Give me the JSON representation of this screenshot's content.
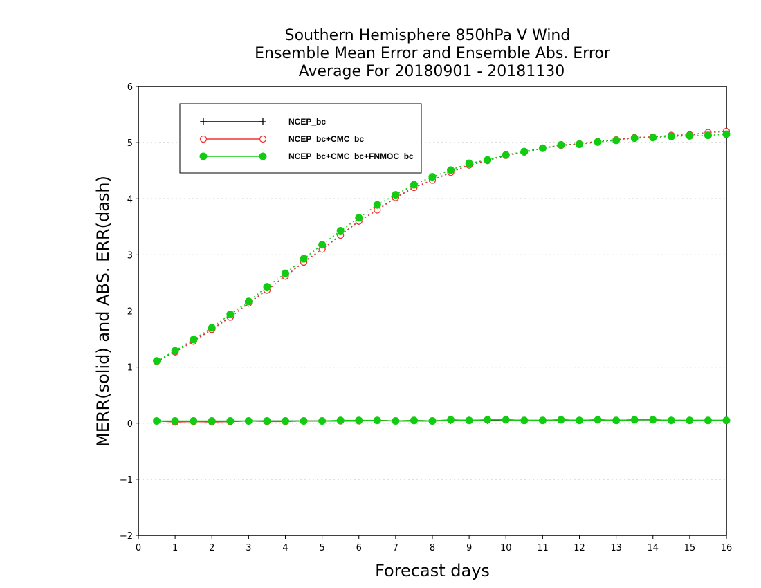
{
  "chart_data": {
    "type": "line",
    "title_lines": [
      "Southern Hemisphere 850hPa V Wind",
      "Ensemble Mean Error and Ensemble Abs. Error",
      "Average For 20180901 - 20181130"
    ],
    "xlabel": "Forecast days",
    "ylabel": "MERR(solid) and ABS. ERR(dash)",
    "xlim": [
      0,
      16
    ],
    "ylim": [
      -2,
      6
    ],
    "xticks": [
      0,
      1,
      2,
      3,
      4,
      5,
      6,
      7,
      8,
      9,
      10,
      11,
      12,
      13,
      14,
      15,
      16
    ],
    "yticks": [
      -2,
      -1,
      0,
      1,
      2,
      3,
      4,
      5,
      6
    ],
    "grid": "horizontal dotted",
    "legend_position": "top-left",
    "x": [
      0.5,
      1.0,
      1.5,
      2.0,
      2.5,
      3.0,
      3.5,
      4.0,
      4.5,
      5.0,
      5.5,
      6.0,
      6.5,
      7.0,
      7.5,
      8.0,
      8.5,
      9.0,
      9.5,
      10.0,
      10.5,
      11.0,
      11.5,
      12.0,
      12.5,
      13.0,
      13.5,
      14.0,
      14.5,
      15.0,
      15.5,
      16.0
    ],
    "series": [
      {
        "name": "NCEP_bc",
        "color": "#000000",
        "marker": "plus",
        "merr": [
          0.04,
          0.03,
          0.03,
          0.03,
          0.03,
          0.04,
          0.04,
          0.04,
          0.04,
          0.04,
          0.04,
          0.04,
          0.05,
          0.04,
          0.04,
          0.04,
          0.05,
          0.05,
          0.05,
          0.06,
          0.05,
          0.05,
          0.06,
          0.05,
          0.06,
          0.05,
          0.06,
          0.06,
          0.05,
          0.05,
          0.05,
          0.05
        ],
        "abs_err": [
          1.1,
          1.27,
          1.46,
          1.67,
          1.89,
          2.14,
          2.37,
          2.62,
          2.87,
          3.1,
          3.35,
          3.6,
          3.8,
          4.02,
          4.2,
          4.33,
          4.47,
          4.6,
          4.68,
          4.77,
          4.83,
          4.9,
          4.95,
          4.98,
          5.02,
          5.05,
          5.09,
          5.1,
          5.13,
          5.14,
          5.18,
          5.2
        ]
      },
      {
        "name": "NCEP_bc+CMC_bc",
        "color": "#ee3333",
        "marker": "open-circle",
        "merr": [
          0.04,
          0.02,
          0.03,
          0.02,
          0.03,
          0.04,
          0.03,
          0.03,
          0.04,
          0.04,
          0.04,
          0.04,
          0.05,
          0.04,
          0.05,
          0.04,
          0.06,
          0.05,
          0.06,
          0.06,
          0.05,
          0.05,
          0.06,
          0.05,
          0.06,
          0.05,
          0.06,
          0.06,
          0.05,
          0.05,
          0.05,
          0.05
        ],
        "abs_err": [
          1.1,
          1.27,
          1.46,
          1.67,
          1.89,
          2.14,
          2.37,
          2.62,
          2.87,
          3.1,
          3.35,
          3.6,
          3.8,
          4.02,
          4.2,
          4.33,
          4.47,
          4.6,
          4.68,
          4.77,
          4.83,
          4.9,
          4.95,
          4.98,
          5.02,
          5.05,
          5.09,
          5.1,
          5.13,
          5.14,
          5.18,
          5.2
        ]
      },
      {
        "name": "NCEP_bc+CMC_bc+FNMOC_bc",
        "color": "#11cc11",
        "marker": "filled-circle",
        "merr": [
          0.04,
          0.04,
          0.04,
          0.04,
          0.04,
          0.04,
          0.04,
          0.04,
          0.04,
          0.04,
          0.05,
          0.05,
          0.05,
          0.04,
          0.05,
          0.04,
          0.06,
          0.05,
          0.06,
          0.06,
          0.05,
          0.05,
          0.06,
          0.05,
          0.06,
          0.05,
          0.06,
          0.06,
          0.05,
          0.05,
          0.05,
          0.05
        ],
        "abs_err": [
          1.11,
          1.29,
          1.49,
          1.7,
          1.94,
          2.17,
          2.43,
          2.67,
          2.93,
          3.18,
          3.43,
          3.66,
          3.89,
          4.07,
          4.25,
          4.39,
          4.51,
          4.63,
          4.69,
          4.78,
          4.84,
          4.9,
          4.96,
          4.97,
          5.01,
          5.04,
          5.08,
          5.09,
          5.11,
          5.12,
          5.13,
          5.15
        ]
      }
    ]
  }
}
